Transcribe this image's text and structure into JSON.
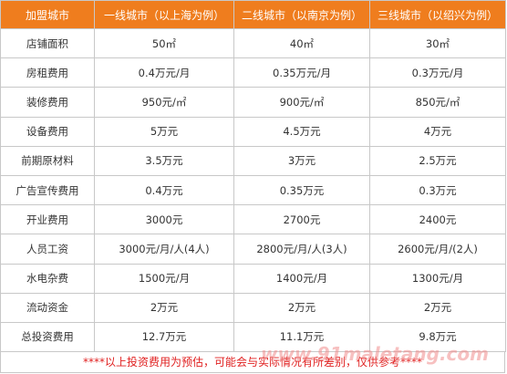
{
  "table": {
    "header": [
      "加盟城市",
      "一线城市（以上海为例）",
      "二线城市（以南京为例）",
      "三线城市（以绍兴为例）"
    ],
    "rows": [
      [
        "店铺面积",
        "50㎡",
        "40㎡",
        "30㎡"
      ],
      [
        "房租费用",
        "0.4万元/月",
        "0.35万元/月",
        "0.3万元/月"
      ],
      [
        "装修费用",
        "950元/㎡",
        "900元/㎡",
        "850元/㎡"
      ],
      [
        "设备费用",
        "5万元",
        "4.5万元",
        "4万元"
      ],
      [
        "前期原材料",
        "3.5万元",
        "3万元",
        "2.5万元"
      ],
      [
        "广告宣传费用",
        "0.4万元",
        "0.35万元",
        "0.3万元"
      ],
      [
        "开业费用",
        "3000元",
        "2700元",
        "2400元"
      ],
      [
        "人员工资",
        "3000元/月/人(4人)",
        "2800元/月/人(3人)",
        "2600元/月/(2人)"
      ],
      [
        "水电杂费",
        "1500元/月",
        "1400元/月",
        "1300元/月"
      ],
      [
        "流动资金",
        "2万元",
        "2万元",
        "2万元"
      ],
      [
        "总投资费用",
        "12.7万元",
        "11.1万元",
        "9.8万元"
      ]
    ],
    "note": "****以上投资费用为预估，可能会与实际情况有所差别，仅供参考****",
    "watermark": "www.91maletang.com"
  }
}
